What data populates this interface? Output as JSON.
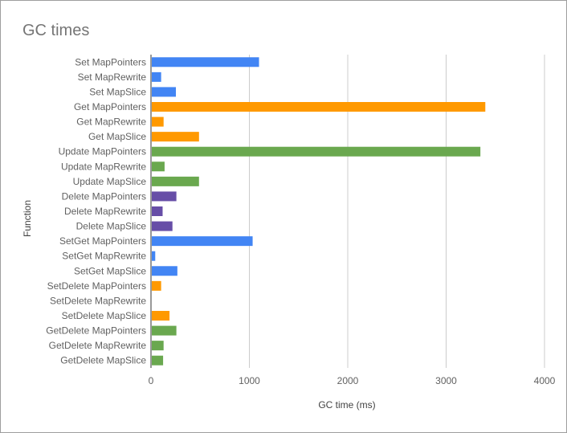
{
  "chart_data": {
    "type": "bar",
    "orientation": "horizontal",
    "title": "GC times",
    "xlabel": "GC time (ms)",
    "ylabel": "Function",
    "xlim": [
      0,
      4000
    ],
    "xticks": [
      "0",
      "1000",
      "2000",
      "3000",
      "4000"
    ],
    "grid": true,
    "legend": "none",
    "colors": {
      "Set": "#4285f4",
      "Get": "#ff9900",
      "Update": "#6aa84f",
      "Delete": "#674ea7"
    },
    "bars": [
      {
        "category": "Set MapPointers",
        "value": 1090,
        "color": "#4285f4"
      },
      {
        "category": "Set MapRewrite",
        "value": 95,
        "color": "#4285f4"
      },
      {
        "category": "Set MapSlice",
        "value": 245,
        "color": "#4285f4"
      },
      {
        "category": "Get MapPointers",
        "value": 3390,
        "color": "#ff9900"
      },
      {
        "category": "Get MapRewrite",
        "value": 120,
        "color": "#ff9900"
      },
      {
        "category": "Get MapSlice",
        "value": 480,
        "color": "#ff9900"
      },
      {
        "category": "Update MapPointers",
        "value": 3340,
        "color": "#6aa84f"
      },
      {
        "category": "Update MapRewrite",
        "value": 130,
        "color": "#6aa84f"
      },
      {
        "category": "Update MapSlice",
        "value": 480,
        "color": "#6aa84f"
      },
      {
        "category": "Delete MapPointers",
        "value": 250,
        "color": "#674ea7"
      },
      {
        "category": "Delete MapRewrite",
        "value": 110,
        "color": "#674ea7"
      },
      {
        "category": "Delete MapSlice",
        "value": 210,
        "color": "#674ea7"
      },
      {
        "category": "SetGet MapPointers",
        "value": 1025,
        "color": "#4285f4"
      },
      {
        "category": "SetGet MapRewrite",
        "value": 35,
        "color": "#4285f4"
      },
      {
        "category": "SetGet MapSlice",
        "value": 260,
        "color": "#4285f4"
      },
      {
        "category": "SetDelete MapPointers",
        "value": 95,
        "color": "#ff9900"
      },
      {
        "category": "SetDelete MapRewrite",
        "value": 0,
        "color": "#ff9900"
      },
      {
        "category": "SetDelete MapSlice",
        "value": 180,
        "color": "#ff9900"
      },
      {
        "category": "GetDelete MapPointers",
        "value": 250,
        "color": "#6aa84f"
      },
      {
        "category": "GetDelete MapRewrite",
        "value": 120,
        "color": "#6aa84f"
      },
      {
        "category": "GetDelete MapSlice",
        "value": 115,
        "color": "#6aa84f"
      }
    ]
  }
}
